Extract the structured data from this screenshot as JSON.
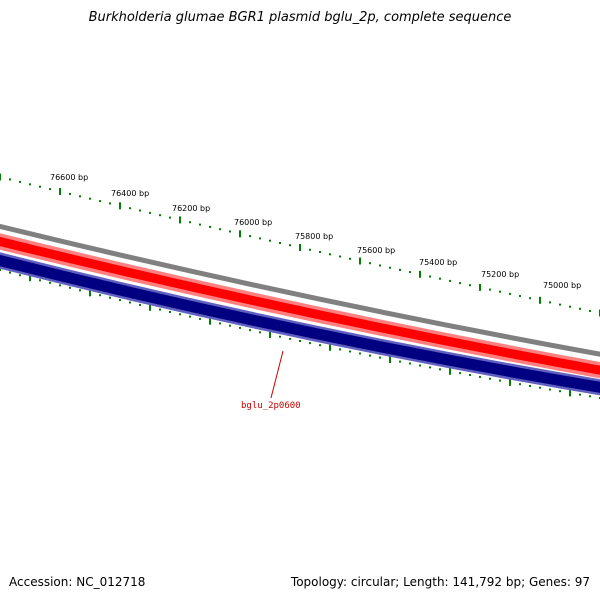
{
  "title": "Burkholderia glumae BGR1 plasmid bglu_2p, complete sequence",
  "footer": {
    "accession": "Accession: NC_012718",
    "summary": "Topology: circular; Length: 141,792 bp; Genes: 97"
  },
  "colors": {
    "backbone": "#808080",
    "forward_gene": "#ff0000",
    "forward_gene_edge": "#ff8080",
    "reverse_gene": "#000080",
    "reverse_gene_edge": "#6060c0",
    "tick": "#008000",
    "gene_label": "#cc0000"
  },
  "scale_labels": [
    "76600 bp",
    "76400 bp",
    "76200 bp",
    "76000 bp",
    "75800 bp",
    "75600 bp",
    "75400 bp",
    "75200 bp",
    "75000 bp"
  ],
  "gene_labels": [
    "bglu_2p0600"
  ]
}
